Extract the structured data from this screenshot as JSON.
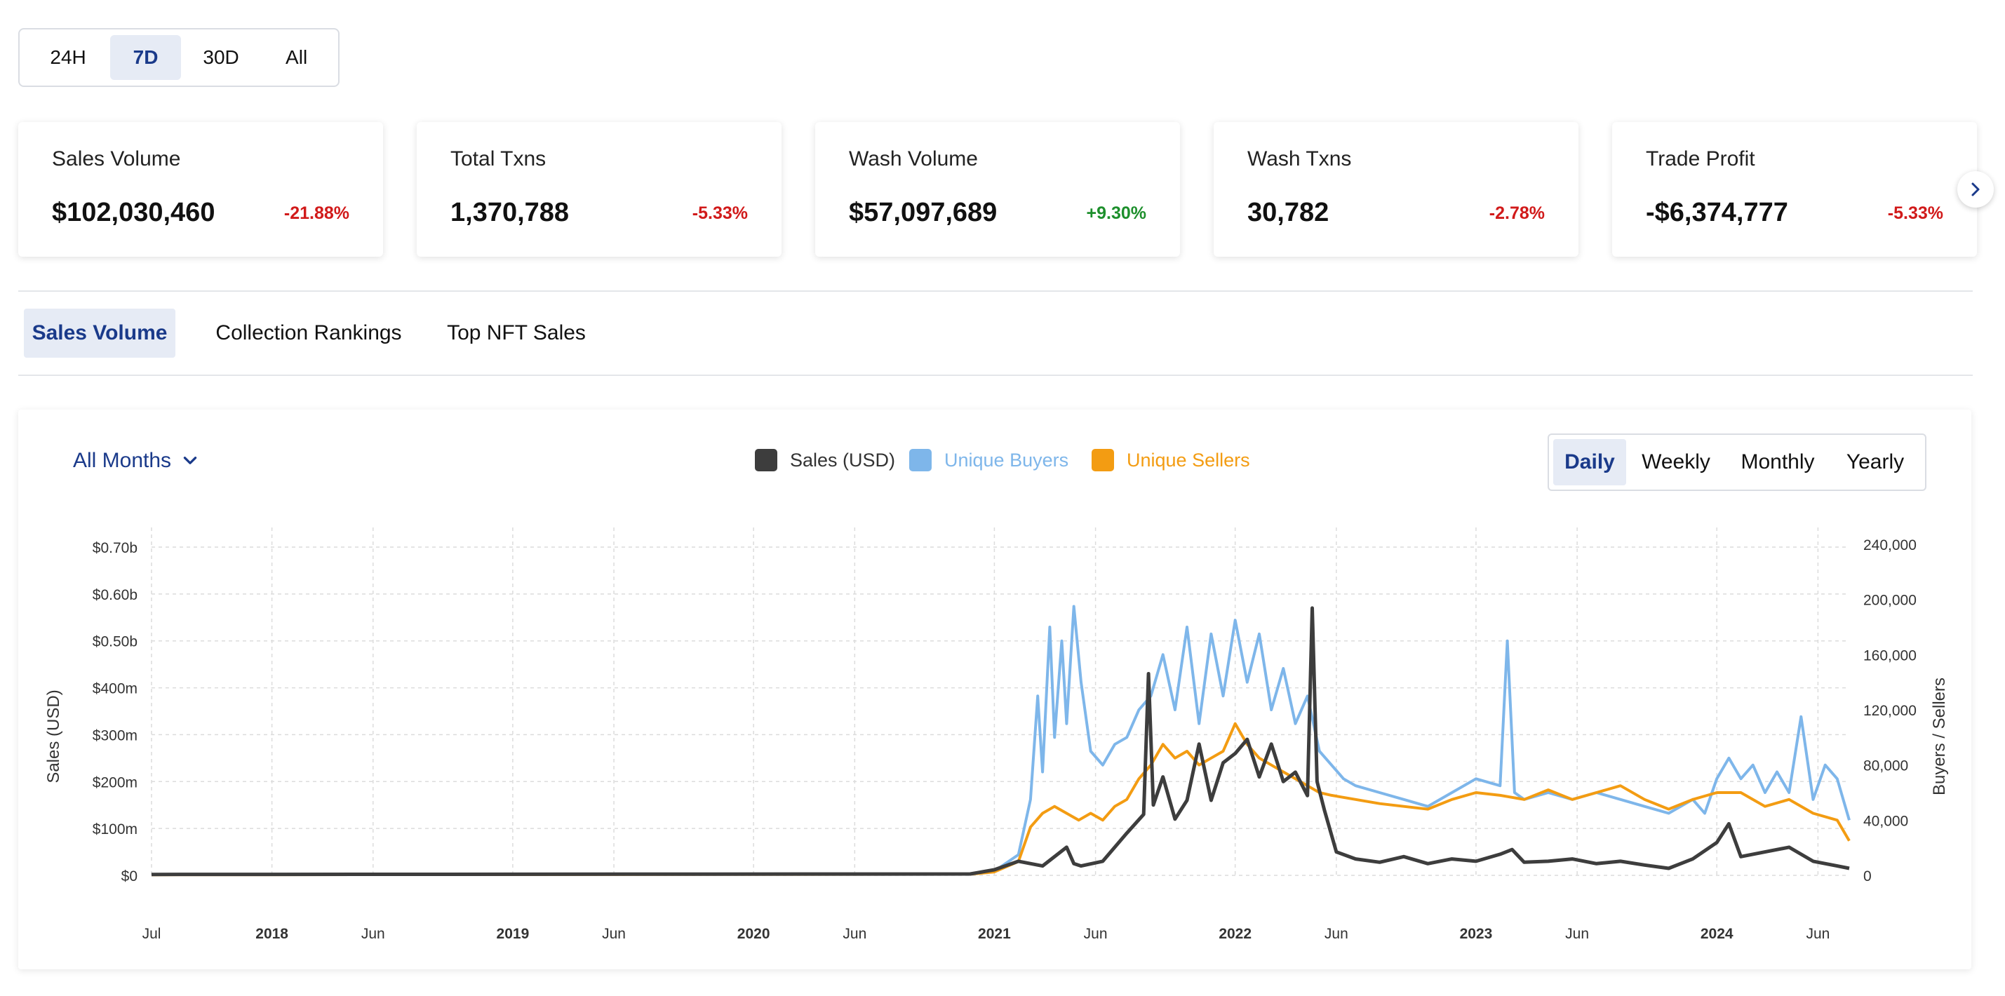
{
  "timeframe": {
    "options": [
      "24H",
      "7D",
      "30D",
      "All"
    ],
    "selected": "7D"
  },
  "cards": [
    {
      "title": "Sales Volume",
      "value": "$102,030,460",
      "change": "-21.88%",
      "trend": "down"
    },
    {
      "title": "Total Txns",
      "value": "1,370,788",
      "change": "-5.33%",
      "trend": "down"
    },
    {
      "title": "Wash Volume",
      "value": "$57,097,689",
      "change": "+9.30%",
      "trend": "up"
    },
    {
      "title": "Wash Txns",
      "value": "30,782",
      "change": "-2.78%",
      "trend": "down"
    },
    {
      "title": "Trade Profit",
      "value": "-$6,374,777",
      "change": "-5.33%",
      "trend": "down"
    }
  ],
  "tabs": {
    "items": [
      "Sales Volume",
      "Collection Rankings",
      "Top NFT Sales"
    ],
    "selected": "Sales Volume"
  },
  "filter": {
    "label": "All Months"
  },
  "granularity": {
    "options": [
      "Daily",
      "Weekly",
      "Monthly",
      "Yearly"
    ],
    "selected": "Daily"
  },
  "colors": {
    "sales": "#3d3d3d",
    "buyers": "#7eb6ea",
    "sellers": "#f39c12",
    "accent": "#1a3a8a",
    "negative": "#d11a1a",
    "positive": "#1d8f2c"
  },
  "chart_data": {
    "type": "line",
    "title": "",
    "legend": [
      "Sales (USD)",
      "Unique Buyers",
      "Unique Sellers"
    ],
    "ylabel_left": "Sales (USD)",
    "ylabel_right": "Buyers / Sellers",
    "left_ticks": [
      "$0",
      "$100m",
      "$200m",
      "$300m",
      "$400m",
      "$0.50b",
      "$0.60b",
      "$0.70b"
    ],
    "right_ticks": [
      "0",
      "40,000",
      "80,000",
      "120,000",
      "160,000",
      "200,000",
      "240,000"
    ],
    "ylim_left": [
      0,
      700000000
    ],
    "ylim_right": [
      0,
      240000
    ],
    "x_ticks": [
      {
        "label": "Jul",
        "t": 2017.5,
        "bold": false
      },
      {
        "label": "2018",
        "t": 2018.0,
        "bold": true
      },
      {
        "label": "Jun",
        "t": 2018.42,
        "bold": false
      },
      {
        "label": "2019",
        "t": 2019.0,
        "bold": true
      },
      {
        "label": "Jun",
        "t": 2019.42,
        "bold": false
      },
      {
        "label": "2020",
        "t": 2020.0,
        "bold": true
      },
      {
        "label": "Jun",
        "t": 2020.42,
        "bold": false
      },
      {
        "label": "2021",
        "t": 2021.0,
        "bold": true
      },
      {
        "label": "Jun",
        "t": 2021.42,
        "bold": false
      },
      {
        "label": "2022",
        "t": 2022.0,
        "bold": true
      },
      {
        "label": "Jun",
        "t": 2022.42,
        "bold": false
      },
      {
        "label": "2023",
        "t": 2023.0,
        "bold": true
      },
      {
        "label": "Jun",
        "t": 2023.42,
        "bold": false
      },
      {
        "label": "2024",
        "t": 2024.0,
        "bold": true
      },
      {
        "label": "Jun",
        "t": 2024.42,
        "bold": false
      }
    ],
    "xlim": [
      2017.5,
      2024.55
    ],
    "series": [
      {
        "name": "Sales (USD)",
        "t": [
          2017.5,
          2020.9,
          2021.0,
          2021.1,
          2021.2,
          2021.3,
          2021.33,
          2021.36,
          2021.45,
          2021.55,
          2021.62,
          2021.64,
          2021.66,
          2021.7,
          2021.75,
          2021.8,
          2021.85,
          2021.9,
          2021.95,
          2022.0,
          2022.05,
          2022.1,
          2022.15,
          2022.2,
          2022.25,
          2022.3,
          2022.32,
          2022.34,
          2022.37,
          2022.42,
          2022.5,
          2022.6,
          2022.7,
          2022.8,
          2022.9,
          2023.0,
          2023.1,
          2023.15,
          2023.2,
          2023.3,
          2023.4,
          2023.5,
          2023.6,
          2023.7,
          2023.8,
          2023.9,
          2024.0,
          2024.05,
          2024.1,
          2024.2,
          2024.3,
          2024.4,
          2024.5,
          2024.55
        ],
        "values": [
          2000000,
          3000000,
          12000000,
          30000000,
          20000000,
          60000000,
          25000000,
          20000000,
          30000000,
          90000000,
          130000000,
          430000000,
          150000000,
          210000000,
          120000000,
          160000000,
          280000000,
          160000000,
          240000000,
          260000000,
          290000000,
          210000000,
          280000000,
          200000000,
          220000000,
          170000000,
          570000000,
          200000000,
          140000000,
          50000000,
          35000000,
          28000000,
          40000000,
          25000000,
          35000000,
          30000000,
          45000000,
          55000000,
          28000000,
          30000000,
          35000000,
          25000000,
          30000000,
          22000000,
          15000000,
          35000000,
          70000000,
          110000000,
          40000000,
          50000000,
          60000000,
          30000000,
          20000000,
          15000000
        ]
      },
      {
        "name": "Unique Buyers",
        "t": [
          2017.5,
          2020.9,
          2021.0,
          2021.1,
          2021.15,
          2021.18,
          2021.2,
          2021.23,
          2021.25,
          2021.28,
          2021.3,
          2021.33,
          2021.36,
          2021.4,
          2021.45,
          2021.5,
          2021.55,
          2021.6,
          2021.65,
          2021.7,
          2021.75,
          2021.8,
          2021.85,
          2021.9,
          2021.95,
          2022.0,
          2022.05,
          2022.1,
          2022.15,
          2022.2,
          2022.25,
          2022.3,
          2022.35,
          2022.4,
          2022.45,
          2022.5,
          2022.6,
          2022.7,
          2022.8,
          2022.9,
          2023.0,
          2023.1,
          2023.13,
          2023.16,
          2023.2,
          2023.3,
          2023.4,
          2023.5,
          2023.6,
          2023.7,
          2023.8,
          2023.9,
          2023.95,
          2024.0,
          2024.05,
          2024.1,
          2024.15,
          2024.2,
          2024.25,
          2024.3,
          2024.35,
          2024.4,
          2024.45,
          2024.5,
          2024.55
        ],
        "values": [
          500,
          900,
          3000,
          15000,
          55000,
          130000,
          75000,
          180000,
          100000,
          170000,
          110000,
          195000,
          140000,
          90000,
          80000,
          95000,
          100000,
          120000,
          130000,
          160000,
          120000,
          180000,
          110000,
          175000,
          130000,
          185000,
          140000,
          175000,
          120000,
          150000,
          110000,
          130000,
          90000,
          80000,
          70000,
          65000,
          60000,
          55000,
          50000,
          60000,
          70000,
          65000,
          170000,
          60000,
          55000,
          60000,
          55000,
          60000,
          55000,
          50000,
          45000,
          55000,
          45000,
          70000,
          85000,
          70000,
          80000,
          60000,
          75000,
          60000,
          115000,
          55000,
          80000,
          70000,
          40000
        ]
      },
      {
        "name": "Unique Sellers",
        "t": [
          2017.5,
          2020.9,
          2021.0,
          2021.1,
          2021.15,
          2021.2,
          2021.25,
          2021.3,
          2021.35,
          2021.4,
          2021.45,
          2021.5,
          2021.55,
          2021.6,
          2021.65,
          2021.7,
          2021.75,
          2021.8,
          2021.85,
          2021.9,
          2021.95,
          2022.0,
          2022.05,
          2022.1,
          2022.15,
          2022.2,
          2022.25,
          2022.3,
          2022.35,
          2022.4,
          2022.5,
          2022.6,
          2022.7,
          2022.8,
          2022.9,
          2023.0,
          2023.1,
          2023.2,
          2023.3,
          2023.4,
          2023.5,
          2023.6,
          2023.7,
          2023.8,
          2023.9,
          2024.0,
          2024.1,
          2024.2,
          2024.3,
          2024.4,
          2024.5,
          2024.55
        ],
        "values": [
          400,
          800,
          2500,
          10000,
          35000,
          45000,
          50000,
          45000,
          40000,
          45000,
          40000,
          50000,
          55000,
          70000,
          80000,
          95000,
          85000,
          90000,
          80000,
          85000,
          90000,
          110000,
          95000,
          85000,
          80000,
          75000,
          70000,
          65000,
          60000,
          58000,
          55000,
          52000,
          50000,
          48000,
          55000,
          60000,
          58000,
          55000,
          62000,
          55000,
          60000,
          65000,
          55000,
          48000,
          55000,
          60000,
          60000,
          50000,
          55000,
          45000,
          40000,
          25000
        ]
      }
    ]
  }
}
